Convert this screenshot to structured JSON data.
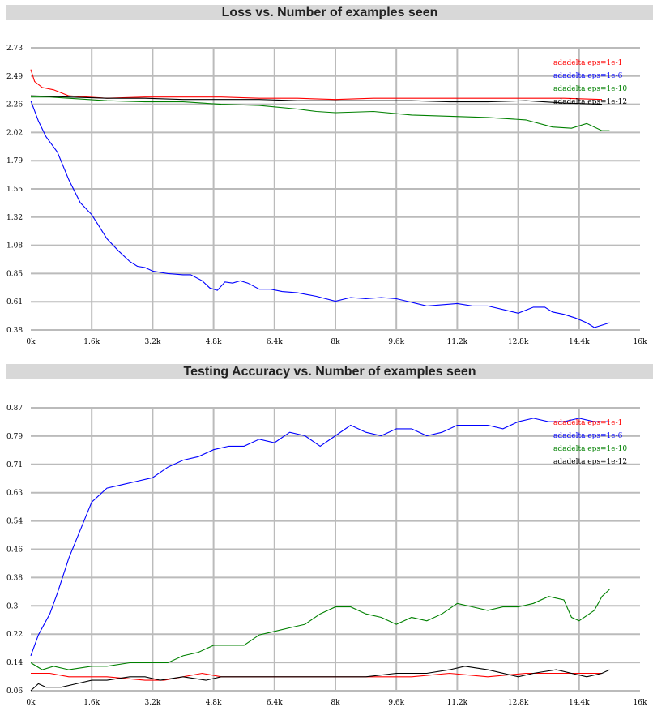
{
  "chart_data": [
    {
      "type": "line",
      "title": "Loss vs. Number of examples seen",
      "xlabel": "",
      "ylabel": "",
      "xlim": [
        0,
        16000
      ],
      "ylim": [
        0.38,
        2.73
      ],
      "x_ticks": [
        "0k",
        "1.6k",
        "3.2k",
        "4.8k",
        "6.4k",
        "8k",
        "9.6k",
        "11.2k",
        "12.8k",
        "14.4k",
        "16k"
      ],
      "y_ticks": [
        "2.73",
        "2.49",
        "2.26",
        "2.02",
        "1.79",
        "1.55",
        "1.32",
        "1.08",
        "0.85",
        "0.61",
        "0.38"
      ],
      "grid": true,
      "legend_position": "top-right",
      "series": [
        {
          "name": "adadelta eps=1e-1",
          "color": "#ff0000",
          "points": [
            [
              0,
              2.55
            ],
            [
              100,
              2.45
            ],
            [
              300,
              2.4
            ],
            [
              600,
              2.38
            ],
            [
              1000,
              2.33
            ],
            [
              2000,
              2.31
            ],
            [
              3000,
              2.32
            ],
            [
              4000,
              2.32
            ],
            [
              5000,
              2.32
            ],
            [
              6000,
              2.31
            ],
            [
              7000,
              2.31
            ],
            [
              8000,
              2.3
            ],
            [
              9000,
              2.31
            ],
            [
              10000,
              2.31
            ],
            [
              11000,
              2.31
            ],
            [
              12000,
              2.31
            ],
            [
              13000,
              2.31
            ],
            [
              14000,
              2.31
            ],
            [
              15000,
              2.3
            ]
          ]
        },
        {
          "name": "adadelta eps=1e-6",
          "color": "#0000ff",
          "points": [
            [
              0,
              2.29
            ],
            [
              200,
              2.12
            ],
            [
              400,
              1.99
            ],
            [
              700,
              1.86
            ],
            [
              1000,
              1.63
            ],
            [
              1300,
              1.44
            ],
            [
              1600,
              1.34
            ],
            [
              1800,
              1.24
            ],
            [
              2000,
              1.14
            ],
            [
              2300,
              1.04
            ],
            [
              2600,
              0.95
            ],
            [
              2800,
              0.91
            ],
            [
              3000,
              0.9
            ],
            [
              3200,
              0.87
            ],
            [
              3600,
              0.85
            ],
            [
              4000,
              0.84
            ],
            [
              4200,
              0.84
            ],
            [
              4500,
              0.79
            ],
            [
              4700,
              0.73
            ],
            [
              4900,
              0.71
            ],
            [
              5100,
              0.78
            ],
            [
              5300,
              0.77
            ],
            [
              5500,
              0.79
            ],
            [
              5700,
              0.77
            ],
            [
              6000,
              0.72
            ],
            [
              6300,
              0.72
            ],
            [
              6600,
              0.7
            ],
            [
              7000,
              0.69
            ],
            [
              7500,
              0.66
            ],
            [
              8000,
              0.62
            ],
            [
              8400,
              0.65
            ],
            [
              8800,
              0.64
            ],
            [
              9200,
              0.65
            ],
            [
              9600,
              0.64
            ],
            [
              10000,
              0.61
            ],
            [
              10400,
              0.58
            ],
            [
              10800,
              0.59
            ],
            [
              11200,
              0.6
            ],
            [
              11600,
              0.58
            ],
            [
              12000,
              0.58
            ],
            [
              12400,
              0.55
            ],
            [
              12800,
              0.52
            ],
            [
              13200,
              0.57
            ],
            [
              13500,
              0.57
            ],
            [
              13700,
              0.53
            ],
            [
              14000,
              0.51
            ],
            [
              14300,
              0.48
            ],
            [
              14600,
              0.44
            ],
            [
              14800,
              0.4
            ],
            [
              15000,
              0.42
            ],
            [
              15200,
              0.44
            ]
          ]
        },
        {
          "name": "adadelta eps=1e-10",
          "color": "#008000",
          "points": [
            [
              0,
              2.32
            ],
            [
              500,
              2.32
            ],
            [
              1000,
              2.31
            ],
            [
              2000,
              2.29
            ],
            [
              3000,
              2.28
            ],
            [
              4000,
              2.28
            ],
            [
              5000,
              2.26
            ],
            [
              6000,
              2.25
            ],
            [
              7000,
              2.22
            ],
            [
              7500,
              2.2
            ],
            [
              8000,
              2.19
            ],
            [
              9000,
              2.2
            ],
            [
              10000,
              2.17
            ],
            [
              11000,
              2.16
            ],
            [
              12000,
              2.15
            ],
            [
              13000,
              2.13
            ],
            [
              13700,
              2.07
            ],
            [
              14200,
              2.06
            ],
            [
              14600,
              2.1
            ],
            [
              15000,
              2.04
            ],
            [
              15200,
              2.04
            ]
          ]
        },
        {
          "name": "adadelta eps=1e-12",
          "color": "#000000",
          "points": [
            [
              0,
              2.33
            ],
            [
              1000,
              2.32
            ],
            [
              2000,
              2.31
            ],
            [
              3000,
              2.31
            ],
            [
              4000,
              2.3
            ],
            [
              5000,
              2.3
            ],
            [
              6000,
              2.3
            ],
            [
              7000,
              2.29
            ],
            [
              8000,
              2.29
            ],
            [
              9000,
              2.29
            ],
            [
              10000,
              2.29
            ],
            [
              11000,
              2.28
            ],
            [
              12000,
              2.28
            ],
            [
              13000,
              2.29
            ],
            [
              14000,
              2.27
            ],
            [
              15000,
              2.26
            ]
          ]
        }
      ]
    },
    {
      "type": "line",
      "title": "Testing Accuracy vs. Number of examples seen",
      "xlabel": "",
      "ylabel": "",
      "xlim": [
        0,
        16000
      ],
      "ylim": [
        0.06,
        0.87
      ],
      "x_ticks": [
        "0k",
        "1.6k",
        "3.2k",
        "4.8k",
        "6.4k",
        "8k",
        "9.6k",
        "11.2k",
        "12.8k",
        "14.4k",
        "16k"
      ],
      "y_ticks": [
        "0.87",
        "0.79",
        "0.71",
        "0.63",
        "0.54",
        "0.46",
        "0.38",
        "0.3",
        "0.22",
        "0.14",
        "0.06"
      ],
      "grid": true,
      "legend_position": "top-right",
      "series": [
        {
          "name": "adadelta eps=1e-1",
          "color": "#ff0000",
          "points": [
            [
              0,
              0.11
            ],
            [
              500,
              0.11
            ],
            [
              1000,
              0.1
            ],
            [
              2000,
              0.1
            ],
            [
              3000,
              0.09
            ],
            [
              3500,
              0.09
            ],
            [
              4000,
              0.1
            ],
            [
              4500,
              0.11
            ],
            [
              5000,
              0.1
            ],
            [
              6000,
              0.1
            ],
            [
              7000,
              0.1
            ],
            [
              8000,
              0.1
            ],
            [
              9000,
              0.1
            ],
            [
              10000,
              0.1
            ],
            [
              11000,
              0.11
            ],
            [
              12000,
              0.1
            ],
            [
              13000,
              0.11
            ],
            [
              14000,
              0.11
            ],
            [
              15000,
              0.11
            ]
          ]
        },
        {
          "name": "adadelta eps=1e-6",
          "color": "#0000ff",
          "points": [
            [
              0,
              0.16
            ],
            [
              200,
              0.22
            ],
            [
              500,
              0.28
            ],
            [
              700,
              0.34
            ],
            [
              1000,
              0.44
            ],
            [
              1300,
              0.52
            ],
            [
              1600,
              0.6
            ],
            [
              2000,
              0.64
            ],
            [
              2400,
              0.65
            ],
            [
              2800,
              0.66
            ],
            [
              3200,
              0.67
            ],
            [
              3600,
              0.7
            ],
            [
              4000,
              0.72
            ],
            [
              4400,
              0.73
            ],
            [
              4800,
              0.75
            ],
            [
              5200,
              0.76
            ],
            [
              5600,
              0.76
            ],
            [
              6000,
              0.78
            ],
            [
              6400,
              0.77
            ],
            [
              6800,
              0.8
            ],
            [
              7200,
              0.79
            ],
            [
              7600,
              0.76
            ],
            [
              8000,
              0.79
            ],
            [
              8400,
              0.82
            ],
            [
              8800,
              0.8
            ],
            [
              9200,
              0.79
            ],
            [
              9600,
              0.81
            ],
            [
              10000,
              0.81
            ],
            [
              10400,
              0.79
            ],
            [
              10800,
              0.8
            ],
            [
              11200,
              0.82
            ],
            [
              11600,
              0.82
            ],
            [
              12000,
              0.82
            ],
            [
              12400,
              0.81
            ],
            [
              12800,
              0.83
            ],
            [
              13200,
              0.84
            ],
            [
              13600,
              0.83
            ],
            [
              14000,
              0.83
            ],
            [
              14400,
              0.84
            ],
            [
              14800,
              0.83
            ],
            [
              15200,
              0.83
            ]
          ]
        },
        {
          "name": "adadelta eps=1e-10",
          "color": "#008000",
          "points": [
            [
              0,
              0.14
            ],
            [
              300,
              0.12
            ],
            [
              600,
              0.13
            ],
            [
              1000,
              0.12
            ],
            [
              1600,
              0.13
            ],
            [
              2000,
              0.13
            ],
            [
              2600,
              0.14
            ],
            [
              3000,
              0.14
            ],
            [
              3600,
              0.14
            ],
            [
              4000,
              0.16
            ],
            [
              4400,
              0.17
            ],
            [
              4800,
              0.19
            ],
            [
              5200,
              0.19
            ],
            [
              5600,
              0.19
            ],
            [
              6000,
              0.22
            ],
            [
              6400,
              0.23
            ],
            [
              6800,
              0.24
            ],
            [
              7200,
              0.25
            ],
            [
              7600,
              0.28
            ],
            [
              8000,
              0.3
            ],
            [
              8400,
              0.3
            ],
            [
              8800,
              0.28
            ],
            [
              9200,
              0.27
            ],
            [
              9600,
              0.25
            ],
            [
              10000,
              0.27
            ],
            [
              10400,
              0.26
            ],
            [
              10800,
              0.28
            ],
            [
              11200,
              0.31
            ],
            [
              11600,
              0.3
            ],
            [
              12000,
              0.29
            ],
            [
              12400,
              0.3
            ],
            [
              12800,
              0.3
            ],
            [
              13200,
              0.31
            ],
            [
              13600,
              0.33
            ],
            [
              14000,
              0.32
            ],
            [
              14200,
              0.27
            ],
            [
              14400,
              0.26
            ],
            [
              14800,
              0.29
            ],
            [
              15000,
              0.33
            ],
            [
              15200,
              0.35
            ]
          ]
        },
        {
          "name": "adadelta eps=1e-12",
          "color": "#000000",
          "points": [
            [
              0,
              0.06
            ],
            [
              200,
              0.08
            ],
            [
              400,
              0.07
            ],
            [
              800,
              0.07
            ],
            [
              1200,
              0.08
            ],
            [
              1600,
              0.09
            ],
            [
              2000,
              0.09
            ],
            [
              2600,
              0.1
            ],
            [
              3000,
              0.1
            ],
            [
              3400,
              0.09
            ],
            [
              4000,
              0.1
            ],
            [
              4600,
              0.09
            ],
            [
              5000,
              0.1
            ],
            [
              5600,
              0.1
            ],
            [
              6000,
              0.1
            ],
            [
              6800,
              0.1
            ],
            [
              7600,
              0.1
            ],
            [
              8000,
              0.1
            ],
            [
              8800,
              0.1
            ],
            [
              9600,
              0.11
            ],
            [
              10400,
              0.11
            ],
            [
              11000,
              0.12
            ],
            [
              11400,
              0.13
            ],
            [
              12000,
              0.12
            ],
            [
              12800,
              0.1
            ],
            [
              13200,
              0.11
            ],
            [
              13800,
              0.12
            ],
            [
              14200,
              0.11
            ],
            [
              14600,
              0.1
            ],
            [
              15000,
              0.11
            ],
            [
              15200,
              0.12
            ]
          ]
        }
      ]
    }
  ]
}
